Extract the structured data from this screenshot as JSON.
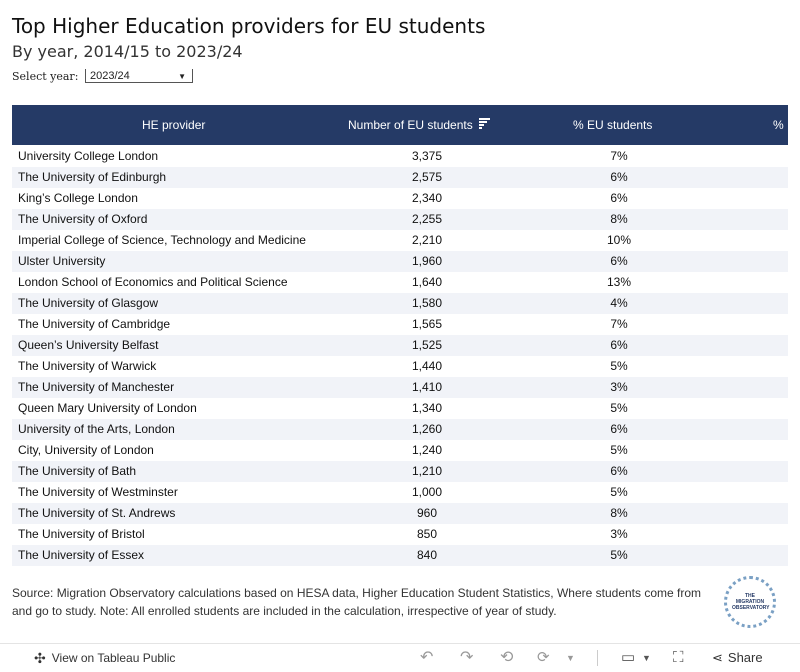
{
  "header": {
    "title": "Top Higher Education providers for EU students",
    "subtitle": "By year, 2014/15 to 2023/24"
  },
  "filter": {
    "label": "Select year:",
    "selected": "2023/24"
  },
  "chart_data": {
    "type": "table",
    "columns": [
      "HE provider",
      "Number of EU students",
      "% EU students",
      "%"
    ],
    "rows": [
      {
        "provider": "University College London",
        "number": "3,375",
        "pct": "7%"
      },
      {
        "provider": "The University of Edinburgh",
        "number": "2,575",
        "pct": "6%"
      },
      {
        "provider": "King’s College London",
        "number": "2,340",
        "pct": "6%"
      },
      {
        "provider": "The University of Oxford",
        "number": "2,255",
        "pct": "8%"
      },
      {
        "provider": "Imperial College of Science, Technology and Medicine",
        "number": "2,210",
        "pct": "10%"
      },
      {
        "provider": "Ulster University",
        "number": "1,960",
        "pct": "6%"
      },
      {
        "provider": "London School of Economics and Political Science",
        "number": "1,640",
        "pct": "13%"
      },
      {
        "provider": "The University of Glasgow",
        "number": "1,580",
        "pct": "4%"
      },
      {
        "provider": "The University of Cambridge",
        "number": "1,565",
        "pct": "7%"
      },
      {
        "provider": "Queen’s University Belfast",
        "number": "1,525",
        "pct": "6%"
      },
      {
        "provider": "The University of Warwick",
        "number": "1,440",
        "pct": "5%"
      },
      {
        "provider": "The University of Manchester",
        "number": "1,410",
        "pct": "3%"
      },
      {
        "provider": "Queen Mary University of London",
        "number": "1,340",
        "pct": "5%"
      },
      {
        "provider": "University of the Arts, London",
        "number": "1,260",
        "pct": "6%"
      },
      {
        "provider": "City, University of London",
        "number": "1,240",
        "pct": "5%"
      },
      {
        "provider": "The University of Bath",
        "number": "1,210",
        "pct": "6%"
      },
      {
        "provider": "The University of Westminster",
        "number": "1,000",
        "pct": "5%"
      },
      {
        "provider": "The University of St. Andrews",
        "number": "960",
        "pct": "8%"
      },
      {
        "provider": "The University of Bristol",
        "number": "850",
        "pct": "3%"
      },
      {
        "provider": "The University of Essex",
        "number": "840",
        "pct": "5%"
      }
    ],
    "header_color": "#253a66",
    "alt_row_color": "#f1f3f8"
  },
  "footer": {
    "source": "Source: Migration Observatory calculations based on HESA data, Higher Education Student Statistics, Where students come from and go to study. Note: All enrolled students are included in the calculation, irrespective of year of study.",
    "logo_text": "THE MIGRATION OBSERVATORY"
  },
  "toolbar": {
    "view_label": "View on Tableau Public",
    "share_label": "Share",
    "icons": [
      "tableau-icon",
      "undo-icon",
      "redo-icon",
      "revert-icon",
      "refresh-icon",
      "comment-icon",
      "fullscreen-icon",
      "share-icon"
    ]
  }
}
